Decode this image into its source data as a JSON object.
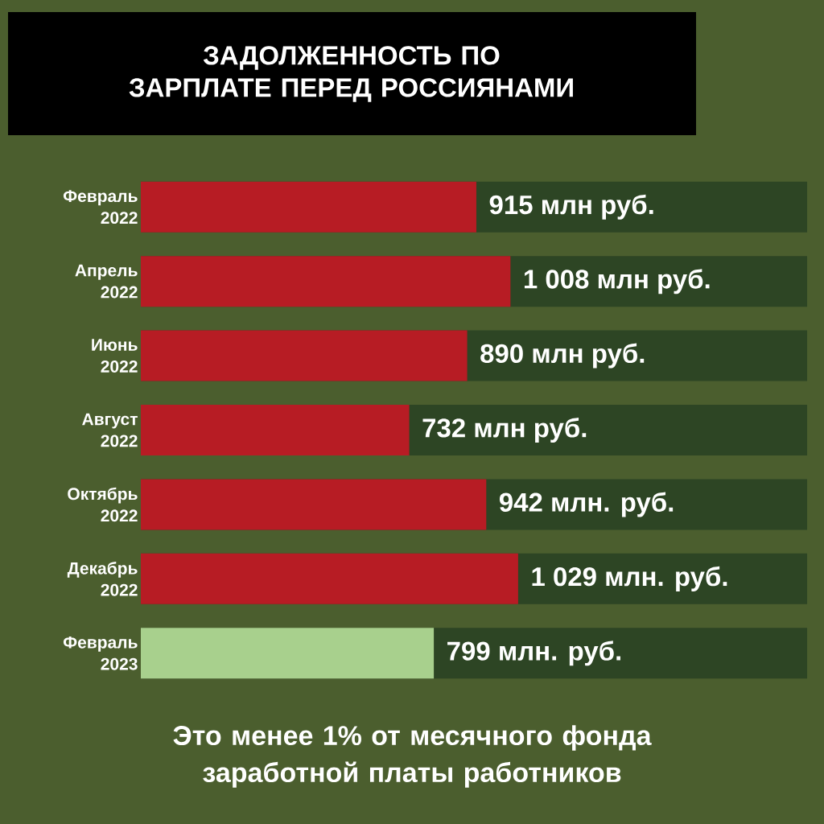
{
  "chart_data": {
    "type": "bar",
    "orientation": "horizontal",
    "title": "ЗАДОЛЖЕННОСТЬ ПО ЗАРПЛАТЕ ПЕРЕД РОССИЯНАМИ",
    "categories": [
      "Февраль 2022",
      "Апрель 2022",
      "Июнь 2022",
      "Август 2022",
      "Октябрь 2022",
      "Декабрь 2022",
      "Февраль 2023"
    ],
    "values": [
      915,
      1008,
      890,
      732,
      942,
      1029,
      799
    ],
    "colors": [
      "#b71c24",
      "#b71c24",
      "#b71c24",
      "#b71c24",
      "#b71c24",
      "#b71c24",
      "#a8d08d"
    ],
    "value_labels": [
      "915 млн руб.",
      "1 008 млн руб.",
      "890 млн руб.",
      "732 млн руб.",
      "942 млн. руб.",
      "1 029 млн. руб.",
      "799 млн. руб."
    ],
    "xlim": [
      0,
      1817
    ],
    "tick_labels": "y",
    "annotations": [
      "Это менее 1% от месячного фонда заработной платы работников"
    ]
  }
}
